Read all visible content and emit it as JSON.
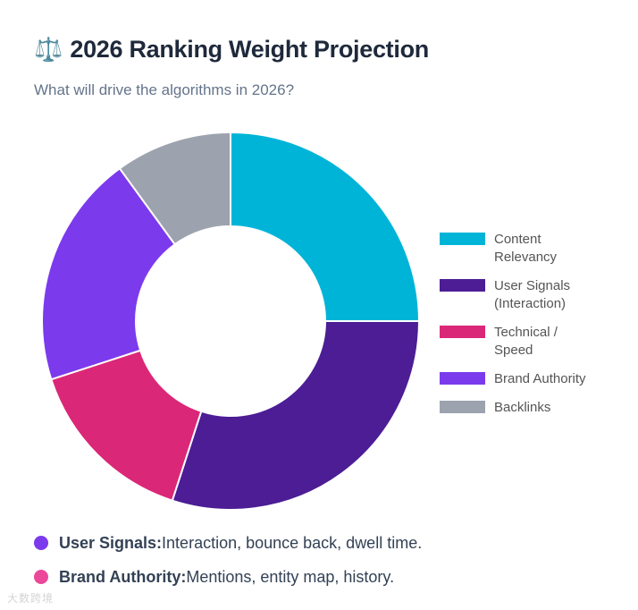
{
  "header": {
    "icon": "⚖️",
    "title": "2026 Ranking Weight Projection",
    "subtitle": "What will drive the algorithms in 2026?"
  },
  "chart_data": {
    "type": "pie",
    "variant": "doughnut",
    "title": "2026 Ranking Weight Projection",
    "subtitle": "What will drive the algorithms in 2026?",
    "categories": [
      "Content Relevancy",
      "User Signals (Interaction)",
      "Technical / Speed",
      "Brand Authority",
      "Backlinks"
    ],
    "legend_lines": [
      [
        "Content",
        "Relevancy"
      ],
      [
        "User Signals",
        "(Interaction)"
      ],
      [
        "Technical /",
        "Speed"
      ],
      [
        "Brand Authority"
      ],
      [
        "Backlinks"
      ]
    ],
    "values": [
      25,
      30,
      15,
      20,
      10
    ],
    "colors": [
      "#00b4d8",
      "#4c1d95",
      "#db2777",
      "#7c3aed",
      "#9ca3af"
    ],
    "legend_position": "right"
  },
  "notes": [
    {
      "term": "User Signals:",
      "text": "Interaction, bounce back, dwell time.",
      "color": "#7c3aed"
    },
    {
      "term": "Brand Authority:",
      "text": "Mentions, entity map, history.",
      "color": "#ec4899"
    }
  ],
  "watermark": "大数跨境"
}
